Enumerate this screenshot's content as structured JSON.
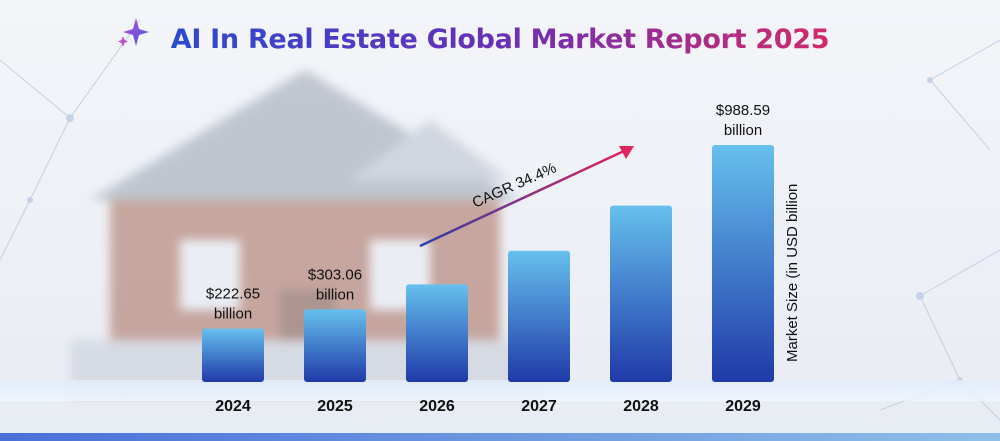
{
  "title": "AI In Real Estate Global Market Report 2025",
  "chart_data": {
    "type": "bar",
    "categories": [
      "2024",
      "2025",
      "2026",
      "2027",
      "2028",
      "2029"
    ],
    "values": [
      222.65,
      303.06,
      407.3,
      547.4,
      735.6,
      988.59
    ],
    "data_labels": [
      {
        "category": "2024",
        "line1": "$222.65",
        "line2": "billion"
      },
      {
        "category": "2025",
        "line1": "$303.06",
        "line2": "billion"
      },
      {
        "category": "2029",
        "line1": "$988.59",
        "line2": "billion"
      }
    ],
    "ylabel": "Market Size (in USD billion",
    "annotation": "CAGR 34.4%",
    "colors": {
      "bar_top": "#66c0ee",
      "bar_bottom": "#1f3aa8",
      "arrow_start": "#2e3fa6",
      "arrow_end": "#e0245e"
    }
  }
}
